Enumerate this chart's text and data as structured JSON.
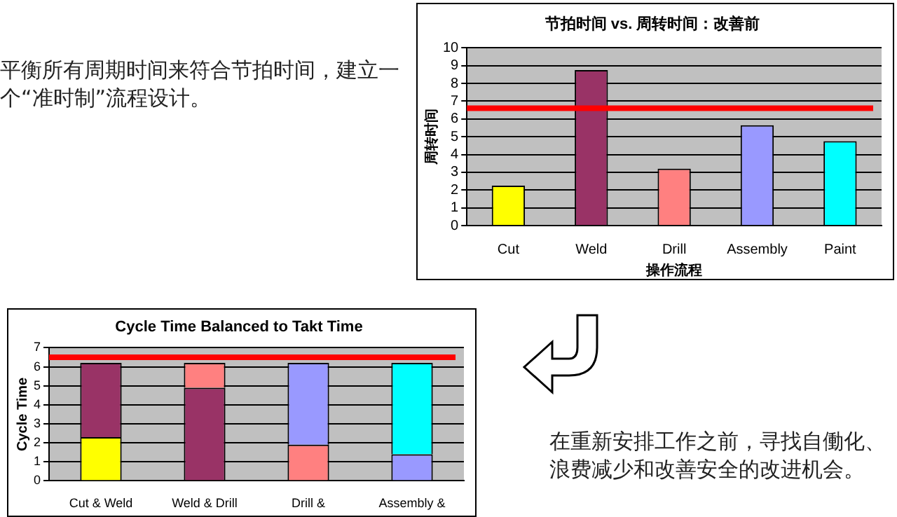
{
  "chart_data": [
    {
      "type": "other",
      "annotations": [
        "平衡所有周期时间来符合节拍时间，建立一个“准时制”流程设计。"
      ]
    },
    {
      "type": "bar",
      "title": "节拍时间 vs. 周转时间：改善前",
      "xlabel": "操作流程",
      "ylabel": "周转时间",
      "categories": [
        "Cut",
        "Weld",
        "Drill",
        "Assembly",
        "Paint"
      ],
      "values": [
        2.25,
        8.75,
        3.2,
        5.65,
        4.75
      ],
      "colors": [
        "#ffff00",
        "#993366",
        "#ff8080",
        "#9999ff",
        "#00ffff"
      ],
      "ylim": [
        0,
        10
      ],
      "yticks": [
        0,
        1,
        2,
        3,
        4,
        5,
        6,
        7,
        8,
        9,
        10
      ],
      "grid": "y",
      "ref_lines": [
        {
          "axis": "y",
          "value": 6.6,
          "color": "#ff0000"
        }
      ]
    },
    {
      "type": "bar",
      "title": "Cycle Time Balanced to Takt Time",
      "ylabel": "Cycle Time",
      "categories": [
        "Cut & Weld",
        "Weld & Drill",
        "Drill &",
        "Assembly &"
      ],
      "stacked": true,
      "series": [
        {
          "color": "#ffff00",
          "values": [
            2.3,
            null,
            null,
            null
          ]
        },
        {
          "color": "#993366",
          "values": [
            3.9,
            4.9,
            null,
            null
          ]
        },
        {
          "color": "#ff8080",
          "values": [
            null,
            1.3,
            1.9,
            null
          ]
        },
        {
          "color": "#9999ff",
          "values": [
            null,
            null,
            4.3,
            1.4
          ]
        },
        {
          "color": "#00ffff",
          "values": [
            null,
            null,
            null,
            4.8
          ]
        }
      ],
      "ylim": [
        0,
        7
      ],
      "yticks": [
        0,
        1,
        2,
        3,
        4,
        5,
        6,
        7
      ],
      "grid": "y",
      "ref_lines": [
        {
          "axis": "y",
          "value": 6.5,
          "color": "#ff0000"
        }
      ]
    },
    {
      "type": "other",
      "annotations": [
        "在重新安排工作之前，寻找自働化、浪费减少和改善安全的改进机会。"
      ]
    }
  ]
}
